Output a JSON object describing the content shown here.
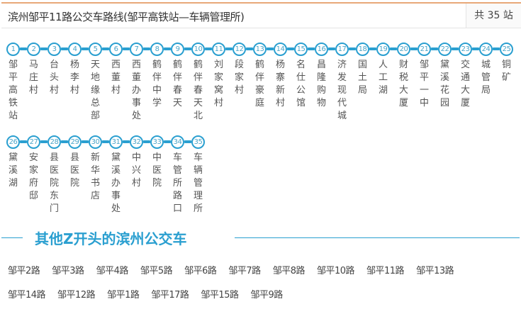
{
  "header": {
    "title": "滨州邹平11路公交车路线(邹平高铁站—车辆管理所)",
    "count": "共 35 站"
  },
  "accent_color": "#2a9fd0",
  "stations": [
    {
      "num": "1",
      "name": "邹平高铁站"
    },
    {
      "num": "2",
      "name": "马庄村"
    },
    {
      "num": "3",
      "name": "台头村"
    },
    {
      "num": "4",
      "name": "杨李村"
    },
    {
      "num": "5",
      "name": "天地缘总部"
    },
    {
      "num": "6",
      "name": "西董村"
    },
    {
      "num": "7",
      "name": "西董办事处"
    },
    {
      "num": "8",
      "name": "鹤伴中学"
    },
    {
      "num": "9",
      "name": "鹤伴春天"
    },
    {
      "num": "10",
      "name": "鹤伴春天北"
    },
    {
      "num": "11",
      "name": "刘家窝村"
    },
    {
      "num": "12",
      "name": "段家村"
    },
    {
      "num": "13",
      "name": "鹤伴豪庭"
    },
    {
      "num": "14",
      "name": "杨寨新村"
    },
    {
      "num": "15",
      "name": "名仕公馆"
    },
    {
      "num": "16",
      "name": "昌隆购物"
    },
    {
      "num": "17",
      "name": "济发现代城"
    },
    {
      "num": "18",
      "name": "国土局"
    },
    {
      "num": "19",
      "name": "人工湖"
    },
    {
      "num": "20",
      "name": "财税大厦"
    },
    {
      "num": "21",
      "name": "邹平一中"
    },
    {
      "num": "22",
      "name": "黛溪花园"
    },
    {
      "num": "23",
      "name": "交通大厦"
    },
    {
      "num": "24",
      "name": "城管局"
    },
    {
      "num": "25",
      "name": "铜矿"
    },
    {
      "num": "26",
      "name": "黛溪湖"
    },
    {
      "num": "27",
      "name": "安家府邸"
    },
    {
      "num": "28",
      "name": "县医院东门"
    },
    {
      "num": "29",
      "name": "县医院"
    },
    {
      "num": "30",
      "name": "新华书店"
    },
    {
      "num": "31",
      "name": "黛溪办事处"
    },
    {
      "num": "32",
      "name": "中兴村"
    },
    {
      "num": "33",
      "name": "中医院"
    },
    {
      "num": "34",
      "name": "车管所路口"
    },
    {
      "num": "35",
      "name": "车辆管理所"
    }
  ],
  "section": {
    "title": "其他Z开头的滨州公交车"
  },
  "links_row1": [
    "邹平2路",
    "邹平3路",
    "邹平4路",
    "邹平5路",
    "邹平6路",
    "邹平7路",
    "邹平8路",
    "邹平10路",
    "邹平11路",
    "邹平13路"
  ],
  "links_row2": [
    "邹平14路",
    "邹平12路",
    "邹平1路",
    "邹平17路",
    "邹平15路",
    "邹平9路"
  ]
}
